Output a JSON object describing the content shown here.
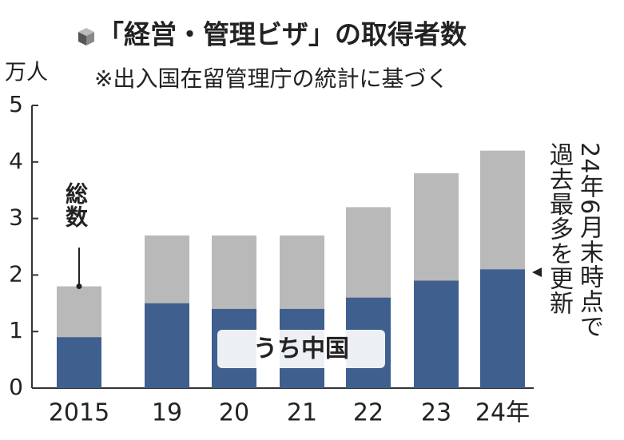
{
  "chart_data": {
    "type": "bar",
    "title": "「経営・管理ビザ」の取得者数",
    "subtitle": "※出入国在留管理庁の統計に基づく",
    "y_axis_label": "万人",
    "categories": [
      "2015",
      "19",
      "20",
      "21",
      "22",
      "23",
      "24年"
    ],
    "series": [
      {
        "name": "総数",
        "color": "#b9b9b9",
        "values": [
          1.8,
          2.7,
          2.7,
          2.7,
          3.2,
          3.8,
          4.2
        ]
      },
      {
        "name": "うち中国",
        "color": "#3f5f8e",
        "values": [
          0.9,
          1.5,
          1.4,
          1.4,
          1.6,
          1.9,
          2.1
        ]
      }
    ],
    "annotations": [
      "24年6月末時点で",
      "過去最多を更新"
    ],
    "ylim": [
      0,
      5
    ],
    "yticks": [
      0,
      1,
      2,
      3,
      4,
      5
    ],
    "grid": false
  }
}
